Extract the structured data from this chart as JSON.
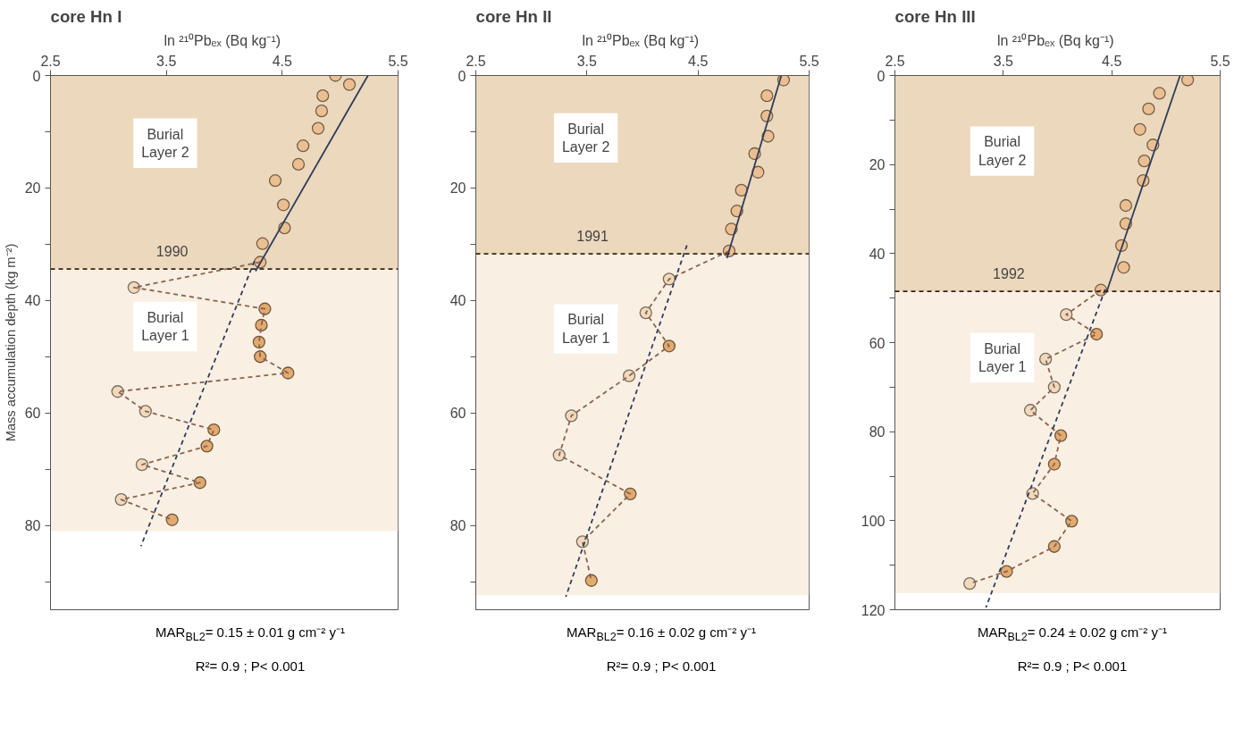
{
  "chart_data": [
    {
      "type": "scatter",
      "title": "core Hn I",
      "xlabel": "ln ²¹⁰Pbₑₓ  (Bq kg⁻¹)",
      "ylabel": "Mass accumulation depth (kg m⁻²)",
      "marker": "circle",
      "xlim": [
        2.5,
        5.5
      ],
      "xticks": [
        2.5,
        3.5,
        4.5,
        5.5
      ],
      "ylim": [
        95,
        0
      ],
      "yticks": [
        0,
        {
          "value": 10,
          "label": null
        },
        20,
        {
          "value": 30,
          "label": null
        },
        40,
        {
          "value": 50,
          "label": null
        },
        60,
        {
          "value": 70,
          "label": null
        },
        80,
        {
          "value": 90,
          "label": null
        }
      ],
      "series": [
        {
          "x": [
            4.96,
            5.08,
            4.85,
            4.84,
            4.81,
            4.68,
            4.64,
            4.44,
            4.51,
            4.52,
            4.33,
            4.31,
            3.22,
            4.35,
            4.32,
            4.3,
            4.31,
            4.55,
            3.08,
            3.32,
            3.91,
            3.85,
            3.29,
            3.79,
            3.11,
            3.55
          ],
          "values": [
            0.0,
            1.6,
            3.6,
            6.3,
            9.4,
            12.5,
            15.8,
            18.7,
            23.0,
            27.1,
            29.9,
            33.2,
            37.7,
            41.5,
            44.4,
            47.4,
            50.0,
            52.9,
            56.2,
            59.7,
            63.0,
            65.9,
            69.2,
            72.4,
            75.4,
            79.0
          ],
          "colors": [
            "#ebbf92",
            "#ebbf92",
            "#ebbf92",
            "#ebbf92",
            "#ebbf92",
            "#ebbf92",
            "#ebbf92",
            "#ebbf92",
            "#ebbf92",
            "#ebbf92",
            "#ebbf92",
            "#ebbf92",
            "#f2d9bc",
            "#e2aa70",
            "#e2aa70",
            "#e2aa70",
            "#e2aa70",
            "#e2aa70",
            "#f2d9bc",
            "#f2d9bc",
            "#e2aa70",
            "#e2aa70",
            "#f2d9bc",
            "#e2aa70",
            "#f2d9bc",
            "#e2aa70"
          ]
        },
        {
          "type": "line",
          "line_style": "dashed",
          "color": "#8a6450",
          "marker": "none",
          "x": [
            4.31,
            3.22,
            4.35,
            4.32,
            4.3,
            4.31,
            4.55,
            3.08,
            3.32,
            3.91,
            3.85,
            3.29,
            3.79,
            3.11,
            3.55
          ],
          "values": [
            33.2,
            37.7,
            41.5,
            44.4,
            47.4,
            50.0,
            52.9,
            56.2,
            59.7,
            63.0,
            65.9,
            69.2,
            72.4,
            75.4,
            79.0
          ]
        },
        {
          "type": "line",
          "line_style": "solid",
          "color": "#2e3d5c",
          "marker": "none",
          "x": [
            5.24,
            4.27
          ],
          "values": [
            0,
            34.8
          ]
        },
        {
          "type": "line",
          "line_style": "dashed",
          "color": "#2e3d5c",
          "marker": "none",
          "x": [
            4.26,
            3.28
          ],
          "values": [
            33.0,
            83.7
          ]
        }
      ],
      "bands": [
        {
          "axis": "y",
          "from": 0,
          "to": 34.4,
          "color": "#ecd8bd",
          "label": "Burial Layer 2"
        },
        {
          "axis": "y",
          "from": 34.4,
          "to": 81,
          "color": "#f9efe3",
          "label": "Burial Layer 1"
        }
      ],
      "ref_lines": [
        {
          "axis": "y",
          "value": 34.4,
          "color": "#3b2314",
          "line_style": "dashed"
        }
      ],
      "annotations": [
        {
          "text": "1990",
          "y": 34.4
        },
        "MAR$_{BL2}$= 0.15 ± 0.01 g cm⁻² y⁻¹",
        "R²= 0.9 ; P< 0.001"
      ]
    },
    {
      "type": "scatter",
      "title": "core Hn II",
      "xlabel": "ln ²¹⁰Pbₑₓ  (Bq kg⁻¹)",
      "marker": "circle",
      "xlim": [
        2.5,
        5.5
      ],
      "xticks": [
        2.5,
        3.5,
        4.5,
        5.5
      ],
      "ylim": [
        95,
        0
      ],
      "yticks": [
        0,
        {
          "value": 10,
          "label": null
        },
        20,
        {
          "value": 30,
          "label": null
        },
        40,
        {
          "value": 50,
          "label": null
        },
        60,
        {
          "value": 70,
          "label": null
        },
        80,
        {
          "value": 90,
          "label": null
        }
      ],
      "series": [
        {
          "x": [
            5.27,
            5.12,
            5.12,
            5.13,
            5.01,
            5.04,
            4.89,
            4.85,
            4.8,
            4.78,
            4.24,
            4.03,
            4.24,
            3.88,
            3.36,
            3.25,
            3.89,
            3.46,
            3.54
          ],
          "values": [
            0.8,
            3.6,
            7.2,
            10.8,
            13.9,
            17.2,
            20.4,
            24.1,
            27.3,
            31.2,
            36.2,
            42.2,
            48.1,
            53.4,
            60.5,
            67.5,
            74.4,
            82.9,
            89.8
          ],
          "colors": [
            "#ebbf92",
            "#ebbf92",
            "#ebbf92",
            "#ebbf92",
            "#ebbf92",
            "#ebbf92",
            "#ebbf92",
            "#ebbf92",
            "#ebbf92",
            "#ebbf92",
            "#f2d9bc",
            "#f2d9bc",
            "#e2aa70",
            "#f2d9bc",
            "#f2d9bc",
            "#f2d9bc",
            "#e2aa70",
            "#f2d9bc",
            "#e2aa70"
          ]
        },
        {
          "type": "line",
          "line_style": "dashed",
          "color": "#8a6450",
          "marker": "none",
          "x": [
            4.78,
            4.24,
            4.03,
            4.24,
            3.88,
            3.36,
            3.25,
            3.89,
            3.46,
            3.54
          ],
          "values": [
            31.2,
            36.2,
            42.2,
            48.1,
            53.4,
            60.5,
            67.5,
            74.4,
            82.9,
            89.8
          ]
        },
        {
          "type": "line",
          "line_style": "solid",
          "color": "#2e3d5c",
          "marker": "none",
          "x": [
            5.25,
            4.76
          ],
          "values": [
            0,
            32.5
          ]
        },
        {
          "type": "line",
          "line_style": "dashed",
          "color": "#2e3d5c",
          "marker": "none",
          "x": [
            4.4,
            3.31
          ],
          "values": [
            30.2,
            92.7
          ]
        }
      ],
      "bands": [
        {
          "axis": "y",
          "from": 0,
          "to": 31.7,
          "color": "#ecd8bd",
          "label": "Burial Layer 2"
        },
        {
          "axis": "y",
          "from": 31.7,
          "to": 92.4,
          "color": "#f9efe3",
          "label": "Burial Layer 1"
        }
      ],
      "ref_lines": [
        {
          "axis": "y",
          "value": 31.7,
          "color": "#3b2314",
          "line_style": "dashed"
        }
      ],
      "annotations": [
        {
          "text": "1991",
          "y": 31.7
        },
        "MAR$_{BL2}$= 0.16 ± 0.02 g cm⁻² y⁻¹",
        "R²= 0.9 ; P< 0.001"
      ]
    },
    {
      "type": "scatter",
      "title": "core Hn III",
      "xlabel": "ln ²¹⁰Pbₑₓ  (Bq kg⁻¹)",
      "marker": "circle",
      "xlim": [
        2.5,
        5.5
      ],
      "xticks": [
        2.5,
        3.5,
        4.5,
        5.5
      ],
      "ylim": [
        120,
        0
      ],
      "yticks": [
        0,
        {
          "value": 10,
          "label": null
        },
        20,
        {
          "value": 30,
          "label": null
        },
        40,
        {
          "value": 50,
          "label": null
        },
        60,
        {
          "value": 70,
          "label": null
        },
        80,
        {
          "value": 90,
          "label": null
        },
        100,
        {
          "value": 110,
          "label": null
        },
        120
      ],
      "series": [
        {
          "x": [
            5.2,
            4.94,
            4.84,
            4.76,
            4.88,
            4.8,
            4.79,
            4.63,
            4.63,
            4.59,
            4.61,
            4.4,
            4.08,
            4.36,
            3.89,
            3.97,
            3.75,
            4.03,
            3.97,
            3.77,
            4.13,
            3.97,
            3.53,
            3.19
          ],
          "values": [
            1.0,
            4.0,
            7.5,
            12.1,
            15.6,
            19.2,
            23.6,
            29.2,
            33.3,
            38.2,
            43.1,
            48.2,
            53.7,
            58.1,
            63.7,
            70.0,
            75.2,
            80.9,
            87.3,
            93.9,
            100.1,
            105.8,
            111.4,
            114.1
          ],
          "colors": [
            "#ebbf92",
            "#ebbf92",
            "#ebbf92",
            "#ebbf92",
            "#ebbf92",
            "#ebbf92",
            "#ebbf92",
            "#ebbf92",
            "#ebbf92",
            "#ebbf92",
            "#ebbf92",
            "#ebbf92",
            "#f2d9bc",
            "#e2aa70",
            "#f2d9bc",
            "#f2d9bc",
            "#f2d9bc",
            "#e2aa70",
            "#e2aa70",
            "#f2d9bc",
            "#e2aa70",
            "#e2aa70",
            "#e2aa70",
            "#f2d9bc"
          ]
        },
        {
          "type": "line",
          "line_style": "dashed",
          "color": "#8a6450",
          "marker": "none",
          "x": [
            4.4,
            4.08,
            4.36,
            3.89,
            3.97,
            3.75,
            4.03,
            3.97,
            3.77,
            4.13,
            3.97,
            3.53,
            3.19
          ],
          "values": [
            48.2,
            53.7,
            58.1,
            63.7,
            70.0,
            75.2,
            80.9,
            87.3,
            93.9,
            100.1,
            105.8,
            111.4,
            114.1
          ]
        },
        {
          "type": "line",
          "line_style": "solid",
          "color": "#2e3d5c",
          "marker": "none",
          "x": [
            5.13,
            4.45
          ],
          "values": [
            0,
            48.8
          ]
        },
        {
          "type": "line",
          "line_style": "dashed",
          "color": "#2e3d5c",
          "marker": "none",
          "x": [
            4.44,
            3.34
          ],
          "values": [
            48.0,
            119.5
          ]
        }
      ],
      "bands": [
        {
          "axis": "y",
          "from": 0,
          "to": 48.5,
          "color": "#ecd8bd",
          "label": "Burial Layer 2"
        },
        {
          "axis": "y",
          "from": 48.5,
          "to": 116.3,
          "color": "#f9efe3",
          "label": "Burial Layer 1"
        }
      ],
      "ref_lines": [
        {
          "axis": "y",
          "value": 48.5,
          "color": "#3b2314",
          "line_style": "dashed"
        }
      ],
      "annotations": [
        {
          "text": "1992",
          "y": 48.5
        },
        "MAR$_{BL2}$= 0.24 ± 0.02 g cm⁻² y⁻¹",
        "R²= 0.9 ; P< 0.001"
      ]
    }
  ]
}
